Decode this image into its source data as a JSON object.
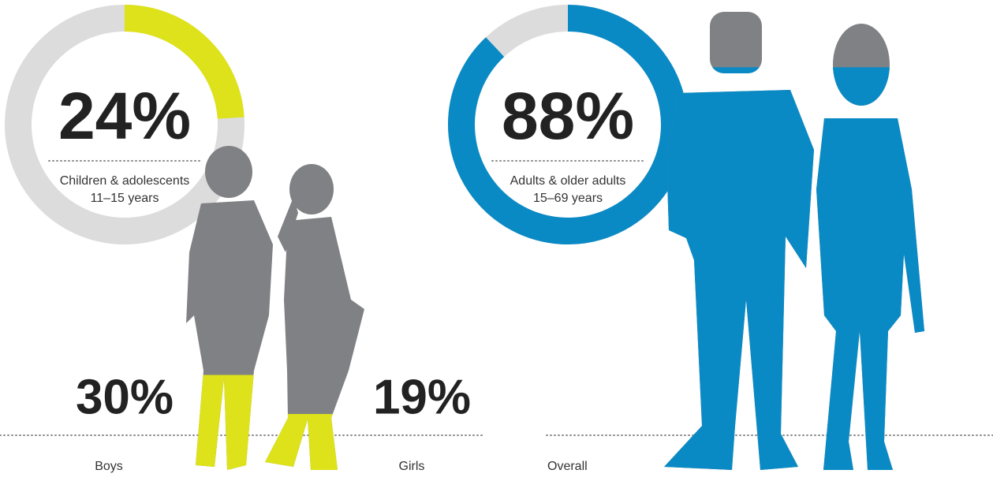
{
  "chart_data": [
    {
      "type": "donut",
      "value": 24,
      "value_label": "24%",
      "label": "Children & adolescents",
      "sublabel": "11–15 years",
      "color": "#dde21a",
      "track_color": "#dcdcdc",
      "figures": [
        {
          "name": "Boys",
          "value": 30,
          "value_label": "30%"
        },
        {
          "name": "Girls",
          "value": 19,
          "value_label": "19%"
        }
      ],
      "figure_color": "#808184"
    },
    {
      "type": "donut",
      "value": 88,
      "value_label": "88%",
      "label": "Adults & older adults",
      "sublabel": "15–69 years",
      "color": "#0a8ac4",
      "track_color": "#dcdcdc",
      "figures": [
        {
          "name": "Overall",
          "value": 88
        }
      ],
      "figure_color": "#808184"
    }
  ]
}
